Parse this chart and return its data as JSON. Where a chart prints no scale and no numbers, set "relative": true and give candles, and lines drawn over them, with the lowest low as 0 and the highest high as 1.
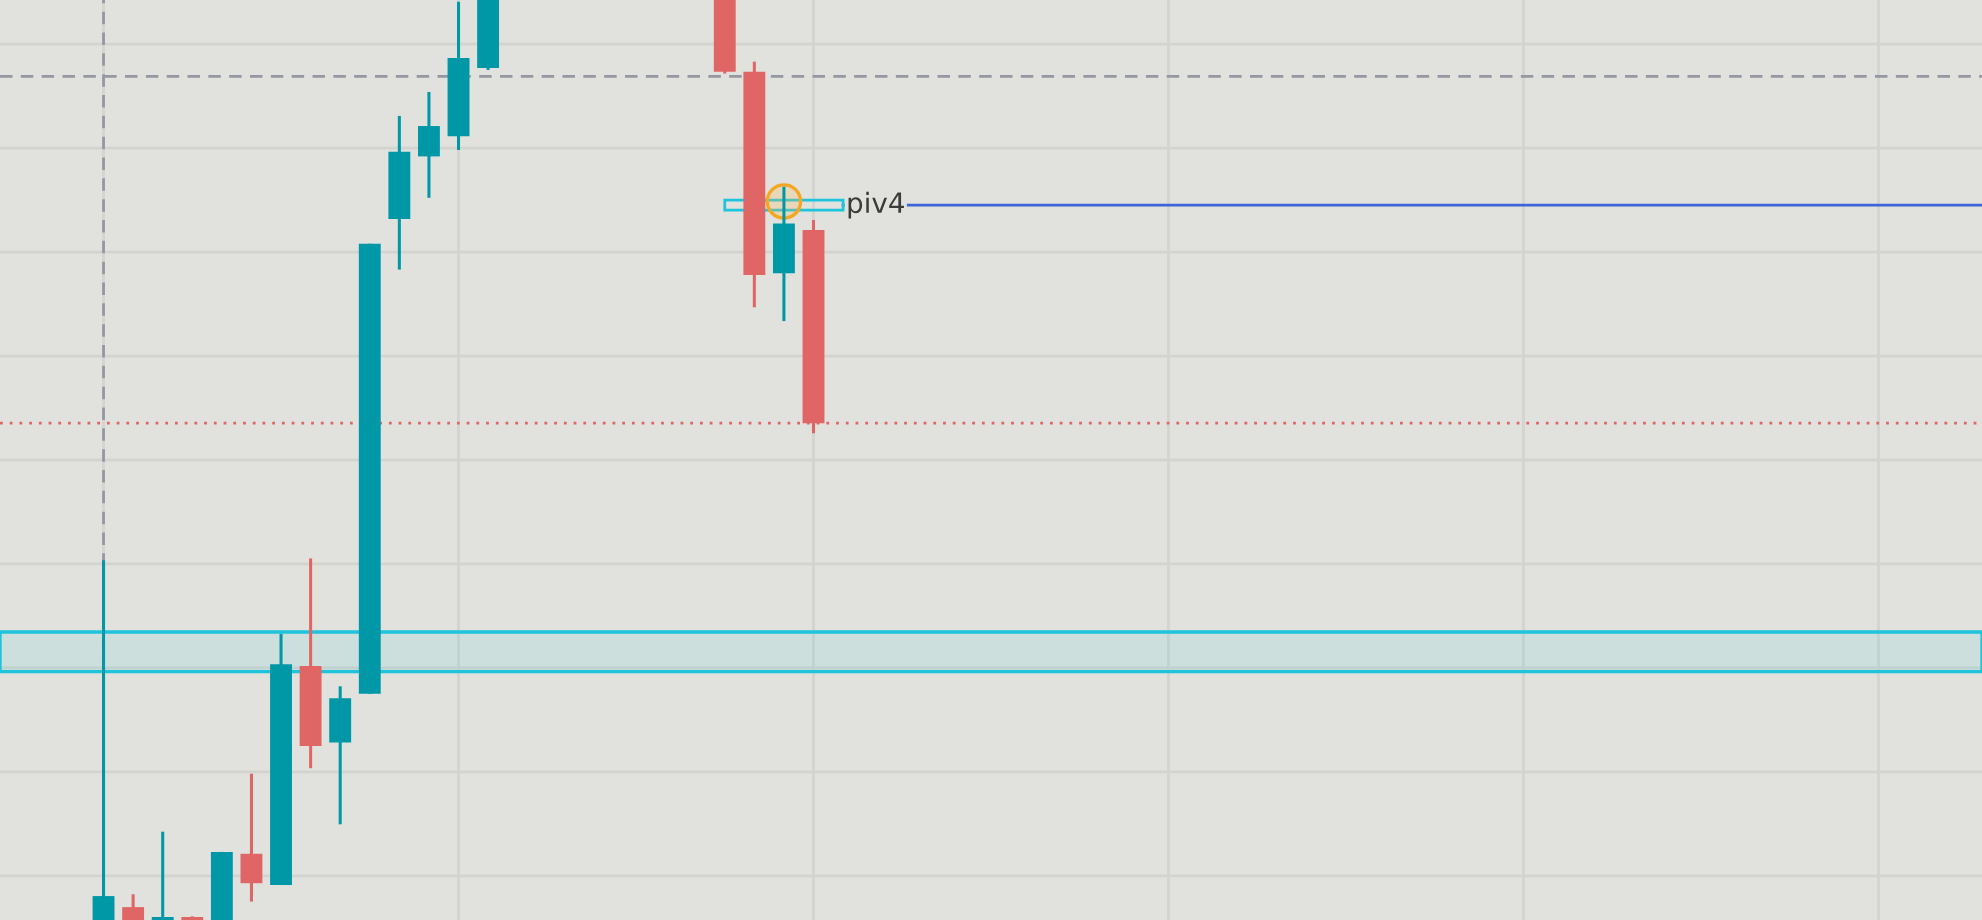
{
  "chart_data": {
    "type": "candlestick",
    "relative": true,
    "categories": [
      null,
      null,
      null,
      null,
      null,
      null,
      null,
      null,
      null,
      null,
      null,
      null,
      null,
      null,
      null,
      null,
      null,
      null,
      null,
      null,
      null,
      null,
      null,
      null,
      null,
      null,
      null,
      null,
      null,
      null,
      null,
      null,
      null,
      null,
      null,
      null,
      null,
      null,
      null,
      null,
      null,
      null,
      null,
      null,
      null,
      null,
      null,
      null,
      null,
      null,
      null,
      null,
      null,
      null,
      null,
      null,
      null,
      null,
      null,
      null,
      null,
      null,
      null,
      null,
      null,
      null,
      null
    ],
    "ohlc": [
      null,
      null,
      null,
      [
        0.0,
        0.391,
        0.0,
        0.026
      ],
      [
        0.014,
        0.028,
        0.0,
        0.0
      ],
      [
        0.0,
        0.096,
        0.0,
        0.0
      ],
      [
        0.0,
        0.004,
        0.0,
        0.0
      ],
      [
        0.0,
        0.074,
        0.0,
        0.074
      ],
      [
        0.072,
        0.159,
        0.02,
        0.04
      ],
      [
        0.038,
        0.311,
        0.038,
        0.278
      ],
      [
        0.276,
        0.393,
        0.165,
        0.189
      ],
      [
        0.193,
        0.254,
        0.104,
        0.241
      ],
      [
        0.246,
        0.735,
        0.246,
        0.735
      ],
      [
        0.762,
        0.874,
        0.707,
        0.835
      ],
      [
        0.83,
        0.9,
        0.785,
        0.863
      ],
      [
        0.852,
        0.998,
        0.837,
        0.937
      ],
      [
        0.926,
        1.0,
        0.924,
        1.0
      ],
      null,
      null,
      null,
      null,
      null,
      null,
      null,
      [
        1.0,
        1.0,
        0.92,
        0.922
      ],
      [
        0.922,
        0.933,
        0.666,
        0.701
      ],
      [
        0.703,
        0.797,
        0.651,
        0.757
      ],
      [
        0.75,
        0.761,
        0.529,
        0.54
      ],
      null,
      null,
      null,
      null,
      null,
      null,
      null,
      null,
      null,
      null,
      null,
      null,
      null,
      null,
      null,
      null,
      null,
      null,
      null,
      null,
      null,
      null,
      null,
      null,
      null,
      null,
      null,
      null,
      null,
      null,
      null,
      null,
      null,
      null,
      null,
      null,
      null,
      null,
      null
    ],
    "colors": [
      null,
      null,
      null,
      "#0097a7",
      "#e06666",
      "#0097a7",
      "#e06666",
      "#0097a7",
      "#e06666",
      "#0097a7",
      "#e06666",
      "#0097a7",
      "#0097a7",
      "#0097a7",
      "#0097a7",
      "#0097a7",
      "#0097a7",
      null,
      null,
      null,
      null,
      null,
      null,
      null,
      "#e06666",
      "#e06666",
      "#0097a7",
      "#e06666",
      null,
      null,
      null,
      null,
      null,
      null,
      null,
      null,
      null,
      null,
      null,
      null,
      null,
      null,
      null,
      null,
      null,
      null,
      null,
      null,
      null,
      null,
      null,
      null,
      null,
      null,
      null,
      null,
      null,
      null,
      null,
      null,
      null,
      null,
      null,
      null,
      null,
      null,
      null
    ],
    "grid": true,
    "tick_labels": false,
    "ref_lines": [
      {
        "axis": "y",
        "value": 0.917,
        "color": "#9598a1",
        "line_style": "dashed"
      },
      {
        "axis": "y",
        "value": 0.54,
        "color": "#e06666",
        "line_style": "dotted"
      },
      {
        "axis": "y",
        "value": 0.777,
        "label": "piv4",
        "color": "#3f63d8",
        "line_style": "solid"
      }
    ],
    "bands": [
      {
        "axis": "y",
        "from": 0.27,
        "to": 0.313,
        "color": "#1ec4dc"
      }
    ]
  }
}
